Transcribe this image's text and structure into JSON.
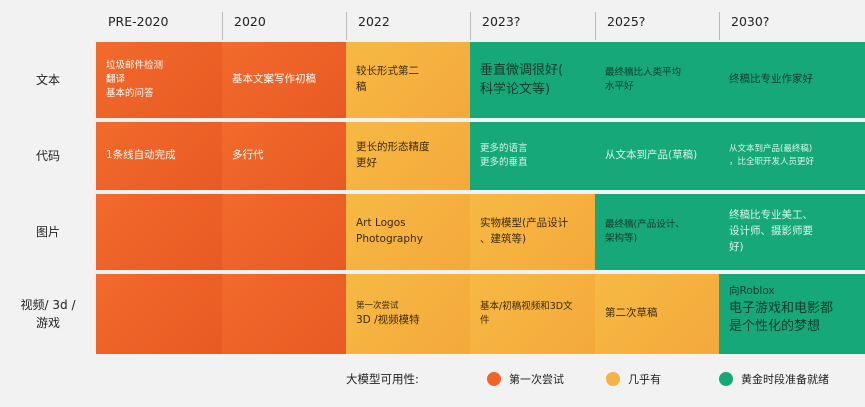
{
  "columns": [
    "PRE-2020",
    "2020",
    "2022",
    "2023?",
    "2025?",
    "2030?"
  ],
  "rows": [
    "文本",
    "代码",
    "图片",
    "视频/ 3d /\n游戏"
  ],
  "cells": {
    "text": {
      "pre2020": [
        "垃圾邮件检测",
        "翻译",
        "基本的问答"
      ],
      "y2020": "基本文案写作初稿",
      "y2022": "较长形式第二\n稿",
      "y2023": "垂直微调很好(\n科学论文等)",
      "y2025": "最终稿比人类平均\n水平好",
      "y2030": "终稿比专业作家好"
    },
    "code": {
      "pre2020": "1条线自动完成",
      "y2020": "多行代",
      "y2022": "更长的形态精度\n更好",
      "y2023": [
        "更多的语言",
        "更多的垂直"
      ],
      "y2025": "从文本到产品(草稿)",
      "y2030": "从文本到产品(最终稿)\n，比全职开发人员更好"
    },
    "image": {
      "y2022": "Art Logos\nPhotography",
      "y2023": "实物模型(产品设计\n、建筑等)",
      "y2025": "最终稿(产品设计、\n架构等)",
      "y2030": "终稿比专业美工、\n设计师、摄影师要\n好)"
    },
    "video": {
      "y2022": [
        "第一次尝试",
        "3D /视频模特"
      ],
      "y2023": "基本/初稿视频和3D文\n件",
      "y2025": "第二次草稿",
      "y2030": [
        "向Roblox",
        "电子游戏和电影都\n是个性化的梦想"
      ]
    }
  },
  "legend": {
    "title": "大模型可用性:",
    "items": [
      {
        "label": "第一次尝试",
        "color": "#ee6429"
      },
      {
        "label": "几乎有",
        "color": "#f6b343"
      },
      {
        "label": "黄金时段准备就绪",
        "color": "#16a878"
      }
    ]
  }
}
